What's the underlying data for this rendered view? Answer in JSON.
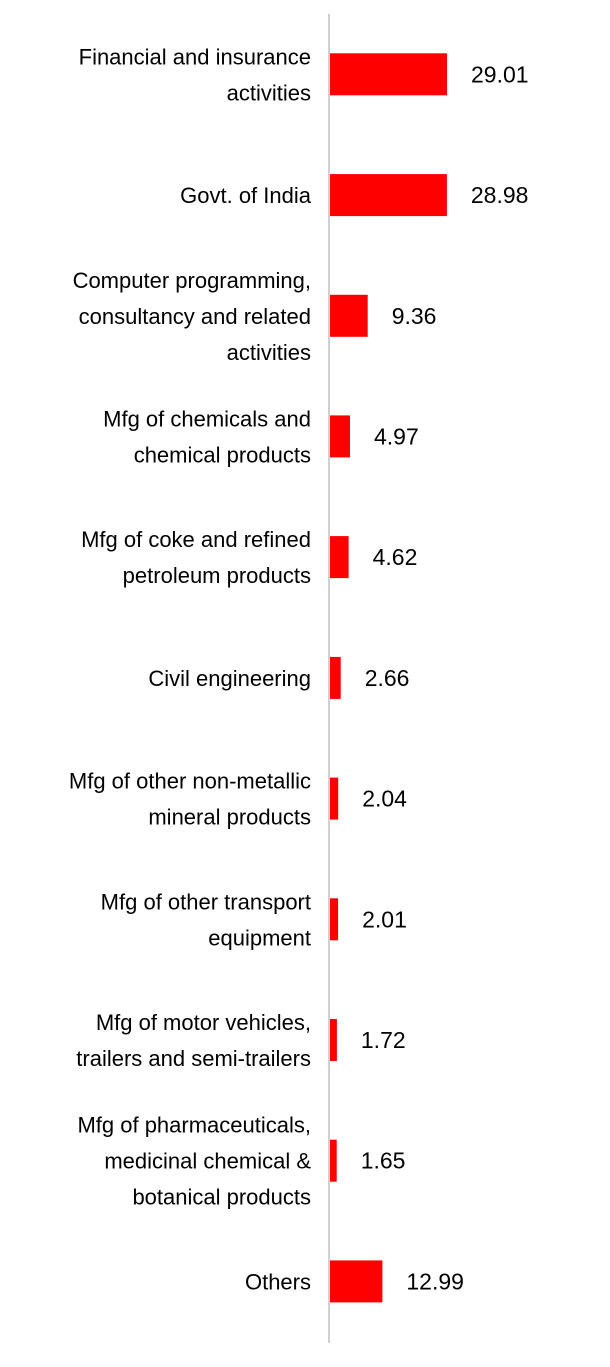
{
  "chart_data": {
    "type": "bar",
    "orientation": "horizontal",
    "title": "",
    "xlabel": "",
    "ylabel": "",
    "grid": false,
    "legend": "none",
    "bar_color": "#ff0000",
    "axis_color": "#d0d0d0",
    "categories": [
      [
        "Financial and insurance",
        "activities"
      ],
      [
        "Govt. of India"
      ],
      [
        "Computer programming,",
        "consultancy and related",
        "activities"
      ],
      [
        "Mfg of chemicals and",
        "chemical products"
      ],
      [
        "Mfg of coke and refined",
        "petroleum products"
      ],
      [
        "Civil engineering"
      ],
      [
        "Mfg of other non-metallic",
        "mineral products"
      ],
      [
        "Mfg of other transport",
        "equipment"
      ],
      [
        "Mfg of motor vehicles,",
        "trailers and semi-trailers"
      ],
      [
        "Mfg of pharmaceuticals,",
        "medicinal chemical &",
        "botanical products"
      ],
      [
        "Others"
      ]
    ],
    "values": [
      29.01,
      28.98,
      9.36,
      4.97,
      4.62,
      2.66,
      2.04,
      2.01,
      1.72,
      1.65,
      12.99
    ],
    "value_labels": [
      "29.01",
      "28.98",
      "9.36",
      "4.97",
      "4.62",
      "2.66",
      "2.04",
      "2.01",
      "1.72",
      "1.65",
      "12.99"
    ],
    "xlim": [
      0,
      29.01
    ]
  }
}
